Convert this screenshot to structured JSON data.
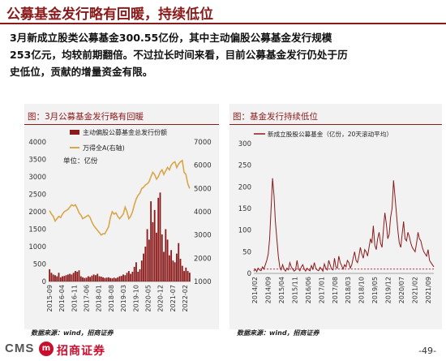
{
  "page": {
    "title": "公募基金发行略有回暖，持续低位",
    "paragraph_lines": [
      "3月新成立股类公募基金300.55亿份，其中主动偏股公募基金发行规模",
      "253亿元，均较前期翻倍。不过拉长时间来看，目前公募基金发行仍处于历",
      "史低位，贡献的增量资金有限。"
    ],
    "page_number": "-49-",
    "logo": {
      "text": "CMS",
      "badge": "m",
      "name_cn": "招商证券"
    }
  },
  "colors": {
    "accent": "#8B1A1A",
    "bar": "#8B1A1A",
    "line_gold": "#D9A648",
    "panel_bg": "#F2F2F2"
  },
  "chart_data": [
    {
      "type": "bar",
      "title": "图：3月公募基金发行略有回暖",
      "source": "数据来源：wind，招商证券",
      "unit_label": "单位：亿份",
      "legend_position": "top-right",
      "ylim": [
        0,
        4000
      ],
      "y_ticks": [
        "0",
        "500",
        "1000",
        "1500",
        "2000",
        "2500",
        "3000",
        "3500",
        "4000"
      ],
      "y2lim": [
        1000,
        7000
      ],
      "y2_ticks": [
        "1000",
        "2000",
        "3000",
        "4000",
        "5000",
        "6000",
        "7000"
      ],
      "x_tick_labels": [
        "2015-09",
        "2016-04",
        "2016-11",
        "2017-06",
        "2018-01",
        "2018-08",
        "2019-03",
        "2019-10",
        "2020-05",
        "2020-12",
        "2021-07",
        "2022-02"
      ],
      "series": [
        {
          "name": "主动偏股公募基金总发行份额",
          "axis": "left",
          "style": "bar",
          "values": [
            350,
            250,
            200,
            180,
            150,
            250,
            120,
            150,
            160,
            180,
            200,
            220,
            200,
            250,
            300,
            280,
            320,
            150,
            120,
            100,
            110,
            150,
            130,
            170,
            200,
            180,
            220,
            150,
            140,
            120,
            100,
            110,
            120,
            100,
            90,
            110,
            90,
            120,
            150,
            160,
            200,
            180,
            250,
            300,
            220,
            280,
            420,
            550,
            280,
            350,
            600,
            800,
            1000,
            1500,
            1200,
            2300,
            1700,
            2050,
            1400,
            2400,
            2550,
            1350,
            850,
            1500,
            1200,
            750,
            900,
            600,
            550,
            800,
            1100,
            650,
            450,
            300,
            400,
            300,
            253
          ]
        },
        {
          "name": "万得全A(右轴)",
          "axis": "right",
          "style": "line",
          "values": [
            4050,
            3900,
            3800,
            3600,
            3700,
            3800,
            3750,
            3900,
            4000,
            4050,
            4100,
            4200,
            4300,
            4250,
            4300,
            4150,
            3950,
            3850,
            3700,
            3750,
            3800,
            3850,
            3750,
            3550,
            3400,
            3300,
            3200,
            3100,
            3000,
            3050,
            3050,
            3200,
            3350,
            3750,
            4000,
            3900,
            3950,
            3800,
            3700,
            3800,
            3900,
            4200,
            4000,
            3700,
            3800,
            4000,
            4300,
            4550,
            4700,
            4800,
            5000,
            5050,
            5150,
            5200,
            5300,
            5500,
            5700,
            5600,
            5400,
            5500,
            5700,
            5800,
            5600,
            5750,
            5900,
            5800,
            6000,
            6100,
            6150,
            5900,
            6050,
            6150,
            6200,
            5700,
            5600,
            5200,
            5000
          ]
        }
      ]
    },
    {
      "type": "line",
      "title": "图：基金发行持续低位",
      "source": "数据来源：wind，招商证券",
      "legend_position": "top-center",
      "ylim": [
        0,
        300
      ],
      "y_ticks": [
        "0",
        "50",
        "100",
        "150",
        "200",
        "250",
        "300"
      ],
      "x_tick_labels": [
        "2014/02",
        "2014/09",
        "2015/04",
        "2015/11",
        "2016/06",
        "2017/01",
        "2017/08",
        "2018/03",
        "2018/10",
        "2019/05",
        "2019/12",
        "2020/07",
        "2021/02",
        "2021/09"
      ],
      "reference_line": 10,
      "series": [
        {
          "name": "新成立股股公募基金（亿份，20天滚动平均）",
          "values": [
            5,
            10,
            4,
            12,
            8,
            6,
            15,
            10,
            20,
            30,
            45,
            80,
            150,
            220,
            180,
            120,
            80,
            40,
            15,
            8,
            20,
            10,
            5,
            12,
            8,
            25,
            15,
            10,
            5,
            8,
            30,
            10,
            6,
            15,
            20,
            10,
            5,
            12,
            8,
            6,
            18,
            10,
            25,
            12,
            8,
            6,
            14,
            10,
            5,
            22,
            12,
            8,
            30,
            20,
            10,
            8,
            35,
            15,
            12,
            40,
            25,
            18,
            10,
            20,
            15,
            30,
            25,
            12,
            20,
            35,
            50,
            30,
            25,
            40,
            60,
            45,
            35,
            55,
            50,
            40,
            60,
            80,
            70,
            110,
            65,
            55,
            80,
            95,
            70,
            60,
            100,
            140,
            115,
            80,
            90,
            130,
            150,
            215,
            180,
            140,
            100,
            70,
            60,
            90,
            120,
            80,
            75,
            95,
            85,
            70,
            60,
            55,
            50,
            70,
            95,
            80,
            75,
            60,
            50,
            45,
            40,
            55,
            30,
            25,
            20,
            15
          ]
        }
      ]
    }
  ]
}
